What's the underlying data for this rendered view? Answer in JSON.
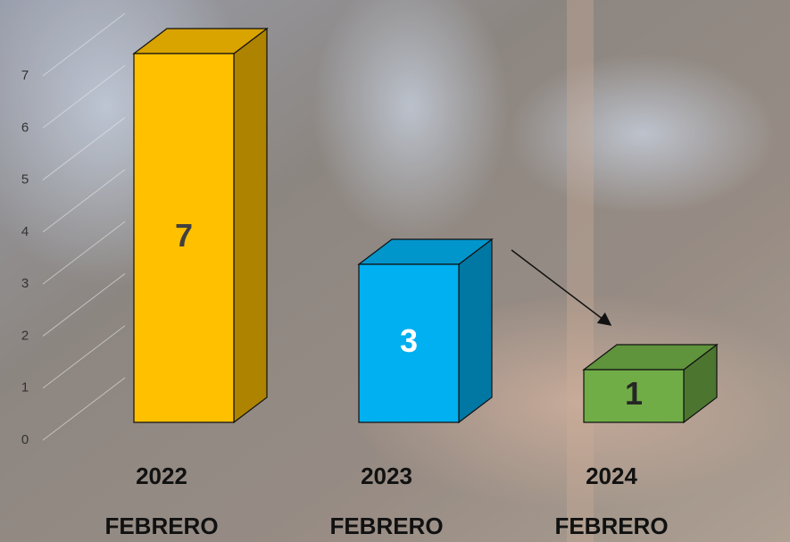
{
  "chart_data": {
    "type": "bar3d",
    "categories": [
      "2022",
      "2023",
      "2024"
    ],
    "sublabels": [
      "FEBRERO",
      "FEBRERO",
      "FEBRERO"
    ],
    "values": [
      7,
      3,
      1
    ],
    "colors": [
      "#ffc000",
      "#00b0f0",
      "#70ad47"
    ],
    "label_colors": [
      "#404040",
      "#ffffff",
      "#262626"
    ],
    "ylim": [
      0,
      7
    ],
    "yticks": [
      0,
      1,
      2,
      3,
      4,
      5,
      6,
      7
    ],
    "grid": true
  }
}
